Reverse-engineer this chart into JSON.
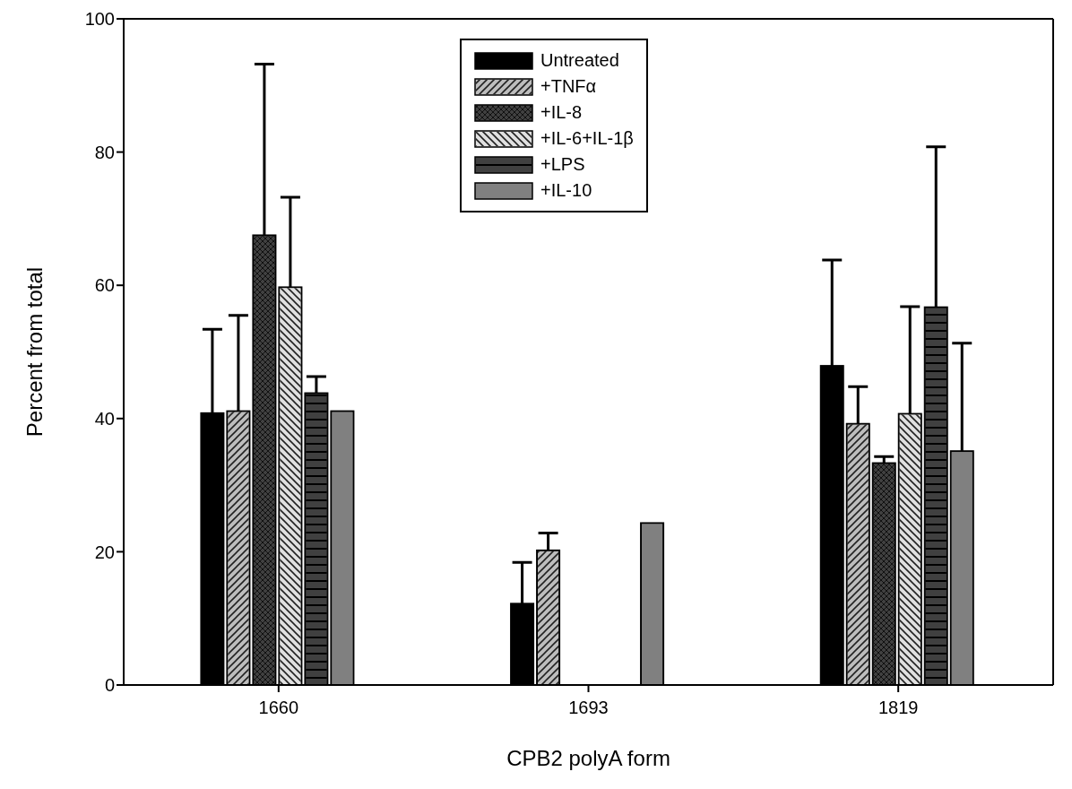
{
  "chart_data": {
    "type": "bar",
    "xlabel": "CPB2 polyA form",
    "ylabel": "Percent from total",
    "categories": [
      "1660",
      "1693",
      "1819"
    ],
    "series": [
      {
        "name": "Untreated",
        "color": "#000000",
        "values": [
          40.8,
          12.2,
          47.9
        ],
        "errors": [
          [
            40.8,
            53.4
          ],
          [
            12.2,
            18.4
          ],
          [
            47.9,
            63.8
          ]
        ]
      },
      {
        "name": "+TNFα",
        "color": "#bdbdbd",
        "values": [
          41.1,
          20.2,
          39.2
        ],
        "errors": [
          [
            41.1,
            55.5
          ],
          [
            20.2,
            22.8
          ],
          [
            39.2,
            44.8
          ]
        ]
      },
      {
        "name": "+IL-8",
        "color": "#404040",
        "values": [
          67.5,
          null,
          33.3
        ],
        "errors": [
          [
            67.5,
            93.2
          ],
          null,
          [
            33.3,
            34.3
          ]
        ]
      },
      {
        "name": "+IL-6+IL-1β",
        "color": "#e0e0e0",
        "values": [
          59.7,
          null,
          40.7
        ],
        "errors": [
          [
            59.7,
            73.2
          ],
          null,
          [
            40.7,
            56.8
          ]
        ]
      },
      {
        "name": "+LPS",
        "color": "#404040",
        "values": [
          43.8,
          null,
          56.7
        ],
        "errors": [
          [
            43.8,
            46.3
          ],
          null,
          [
            56.7,
            80.8
          ]
        ]
      },
      {
        "name": "+IL-10",
        "color": "#808080",
        "values": [
          41.1,
          24.3,
          35.1
        ],
        "errors": [
          null,
          null,
          [
            35.1,
            51.3
          ]
        ]
      }
    ],
    "ylim": [
      0,
      100
    ],
    "yticks": [
      0,
      20,
      40,
      60,
      80,
      100
    ],
    "grid": false,
    "legend": "top"
  }
}
